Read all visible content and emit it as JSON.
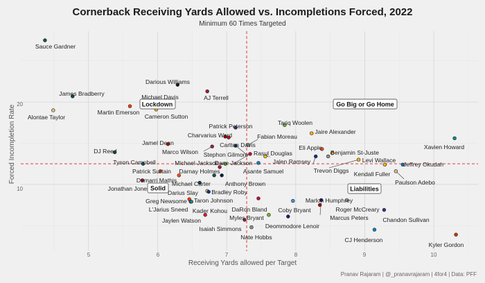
{
  "chart_data": {
    "type": "scatter",
    "title": "Cornerback Receiving Yards Allowed vs. Incompletions Forced, 2022",
    "subtitle": "Minimum 60 Times Targeted",
    "xlabel": "Receiving Yards allowed per Target",
    "ylabel": "Forced Incompletion Rate",
    "caption": "Pranav Rajaram | @_pranavrajaram | 4for4 | Data: PFF",
    "xlim": [
      4.02,
      10.64
    ],
    "ylim": [
      1.9,
      28.6
    ],
    "x_ticks": [
      "5",
      "6",
      "7",
      "8",
      "9",
      "10"
    ],
    "y_ticks": [
      "10",
      "20"
    ],
    "grid": true,
    "reference_lines": {
      "x_mean": 7.29,
      "y_mean": 12.5,
      "color": "#e0393e",
      "style": "dashed"
    },
    "quadrant_labels": {
      "top_left": "Lockdown",
      "top_right": "Go Big or Go Home",
      "bottom_left": "Solid",
      "bottom_right": "Liabilities"
    },
    "points": [
      {
        "name": "Sauce Gardner",
        "x": 4.37,
        "y": 27.5,
        "color": "#125740"
      },
      {
        "name": "James Bradberry",
        "x": 4.77,
        "y": 20.7,
        "color": "#004c54"
      },
      {
        "name": "Alontae Taylor",
        "x": 4.49,
        "y": 19.0,
        "color": "#d3bc8d"
      },
      {
        "name": "Darious Williams",
        "x": 6.29,
        "y": 22.1,
        "color": "#101820"
      },
      {
        "name": "AJ Terrell",
        "x": 6.72,
        "y": 21.3,
        "color": "#a71930"
      },
      {
        "name": "Michael Davis",
        "x": 6.02,
        "y": 20.0,
        "color": "#0080c6"
      },
      {
        "name": "Martin Emerson",
        "x": 5.6,
        "y": 19.5,
        "color": "#ff3c00"
      },
      {
        "name": "Cameron Sutton",
        "x": 5.98,
        "y": 19.1,
        "color": "#ffb612"
      },
      {
        "name": "Patrick Peterson",
        "x": 7.13,
        "y": 16.9,
        "color": "#4f2683"
      },
      {
        "name": "Charvarius Ward",
        "x": 6.98,
        "y": 15.8,
        "color": "#aa0000"
      },
      {
        "name": "Carlton Davis",
        "x": 7.03,
        "y": 15.7,
        "color": "#d50a0a"
      },
      {
        "name": "Fabian Moreau",
        "x": 7.31,
        "y": 14.8,
        "color": "#a5acaf"
      },
      {
        "name": "Stephon Gilmore",
        "x": 7.13,
        "y": 14.7,
        "color": "#002c5f"
      },
      {
        "name": "Marco Wilson",
        "x": 6.79,
        "y": 14.6,
        "color": "#97233f"
      },
      {
        "name": "Jamel Dean",
        "x": 6.15,
        "y": 14.9,
        "color": "#d50a0a"
      },
      {
        "name": "DJ Reed",
        "x": 5.38,
        "y": 13.9,
        "color": "#125740"
      },
      {
        "name": "Rasul Douglas",
        "x": 7.56,
        "y": 13.4,
        "color": "#ffb612"
      },
      {
        "name": "Tariq Woolen",
        "x": 7.84,
        "y": 17.2,
        "color": "#69be28"
      },
      {
        "name": "Jaire Alexander",
        "x": 8.23,
        "y": 16.2,
        "color": "#ffb612"
      },
      {
        "name": "Eli Apple",
        "x": 8.38,
        "y": 14.3,
        "color": "#fb4f14"
      },
      {
        "name": "Benjamin St-Juste",
        "x": 8.53,
        "y": 13.8,
        "color": "#ffb612"
      },
      {
        "name": "Jalen Ramsey",
        "x": 8.29,
        "y": 13.4,
        "color": "#003594"
      },
      {
        "name": "Trevon Diggs",
        "x": 8.47,
        "y": 13.4,
        "color": "#869397"
      },
      {
        "name": "Levi Wallace",
        "x": 8.91,
        "y": 13.0,
        "color": "#ffb612"
      },
      {
        "name": "Kendall Fuller",
        "x": 9.29,
        "y": 12.4,
        "color": "#ffb612"
      },
      {
        "name": "Jeffrey Okudah",
        "x": 9.55,
        "y": 12.4,
        "color": "#0076b6"
      },
      {
        "name": "Paulson Adebo",
        "x": 9.45,
        "y": 11.6,
        "color": "#d3bc8d"
      },
      {
        "name": "Xavien Howard",
        "x": 10.3,
        "y": 15.6,
        "color": "#008e97"
      },
      {
        "name": "Tyson Campbell",
        "x": 5.79,
        "y": 12.5,
        "color": "#006778"
      },
      {
        "name": "Michael Jackson",
        "x": 6.98,
        "y": 12.5,
        "color": "#69be28"
      },
      {
        "name": "Dane Jackson",
        "x": 7.34,
        "y": 13.7,
        "color": "#c60c30"
      },
      {
        "name": "Darnay Holmes",
        "x": 6.9,
        "y": 12.1,
        "color": "#a71930"
      },
      {
        "name": "Asante Samuel",
        "x": 7.46,
        "y": 12.6,
        "color": "#0080c6"
      },
      {
        "name": "Patrick Surtain",
        "x": 6.04,
        "y": 11.6,
        "color": "#fb4f14"
      },
      {
        "name": "Damarri Mathis",
        "x": 6.31,
        "y": 11.1,
        "color": "#fb4f14"
      },
      {
        "name": "Michael Carter",
        "x": 6.82,
        "y": 11.1,
        "color": "#125740"
      },
      {
        "name": "Anthony Brown",
        "x": 6.93,
        "y": 11.1,
        "color": "#041e42"
      },
      {
        "name": "Jonathan Jones",
        "x": 5.78,
        "y": 10.5,
        "color": "#c60c30"
      },
      {
        "name": "Darius Slay",
        "x": 6.61,
        "y": 10.2,
        "color": "#004c54"
      },
      {
        "name": "Bradley Roby",
        "x": 6.72,
        "y": 9.2,
        "color": "#d3bc8d"
      },
      {
        "name": "Taron Johnson",
        "x": 6.74,
        "y": 9.1,
        "color": "#00338d"
      },
      {
        "name": "Greg Newsome",
        "x": 6.46,
        "y": 8.2,
        "color": "#ff3c00"
      },
      {
        "name": "L'Jarius Sneed",
        "x": 6.48,
        "y": 7.9,
        "color": "#e31837"
      },
      {
        "name": "Kader Kohou",
        "x": 6.49,
        "y": 7.9,
        "color": "#008e97"
      },
      {
        "name": "Jaylen Watson",
        "x": 6.69,
        "y": 6.3,
        "color": "#e31837"
      },
      {
        "name": "Isaiah Simmons",
        "x": 7.26,
        "y": 5.7,
        "color": "#97233f"
      },
      {
        "name": "DaRon Bland",
        "x": 7.36,
        "y": 4.8,
        "color": "#869397"
      },
      {
        "name": "Myles Bryant",
        "x": 7.46,
        "y": 8.3,
        "color": "#c60c30"
      },
      {
        "name": "Coby Bryant",
        "x": 7.61,
        "y": 6.3,
        "color": "#69be28"
      },
      {
        "name": "Marlon Humphrey",
        "x": 7.89,
        "y": 6.1,
        "color": "#241773"
      },
      {
        "name": "Roger McCreary",
        "x": 7.96,
        "y": 8.0,
        "color": "#4b92db"
      },
      {
        "name": "Marcus Peters",
        "x": 8.37,
        "y": 8.1,
        "color": "#241773"
      },
      {
        "name": "Deommodore Lenoir",
        "x": 8.35,
        "y": 7.5,
        "color": "#aa0000"
      },
      {
        "name": "Nate Hobbs",
        "x": 8.74,
        "y": 8.1,
        "color": "#a5acaf"
      },
      {
        "name": "Chandon Sullivan",
        "x": 9.28,
        "y": 6.9,
        "color": "#4f2683"
      },
      {
        "name": "CJ Henderson",
        "x": 9.14,
        "y": 4.5,
        "color": "#0085ca"
      },
      {
        "name": "Kyler Gordon",
        "x": 10.32,
        "y": 3.9,
        "color": "#c83803"
      }
    ]
  }
}
